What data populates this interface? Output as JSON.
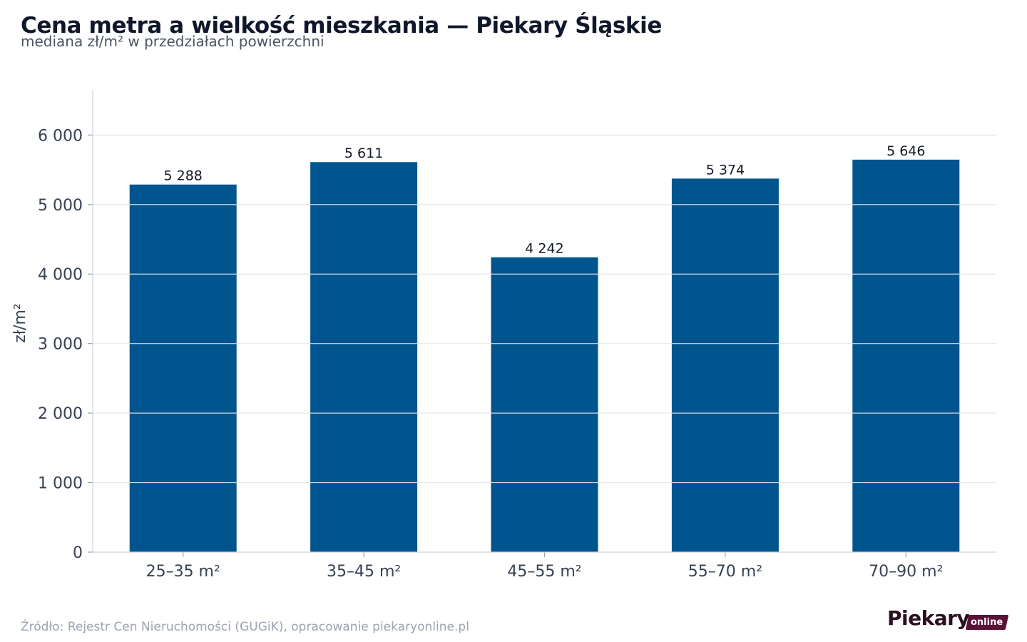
{
  "header": {
    "title": "Cena metra a wielkość mieszkania — Piekary Śląskie",
    "subtitle": "mediana zł/m² w przedziałach powierzchni"
  },
  "footer": {
    "source": "Źródło: Rejestr Cen Nieruchomości (GUGiK), opracowanie piekaryonline.pl"
  },
  "logo": {
    "main": "Piekary",
    "tag": "online",
    "colors": {
      "main": "#2b1020",
      "tag_bg": "#5b1238"
    }
  },
  "chart_data": {
    "type": "bar",
    "title": "Cena metra a wielkość mieszkania — Piekary Śląskie",
    "subtitle": "mediana zł/m² w przedziałach powierzchni",
    "xlabel": "",
    "ylabel": "zł/m²",
    "categories": [
      "25–35 m²",
      "35–45 m²",
      "45–55 m²",
      "55–70 m²",
      "70–90 m²"
    ],
    "values": [
      5288,
      5611,
      4242,
      5374,
      5646
    ],
    "value_labels": [
      "5 288",
      "5 611",
      "4 242",
      "5 374",
      "5 646"
    ],
    "ylim": [
      0,
      6650
    ],
    "yticks": [
      0,
      1000,
      2000,
      3000,
      4000,
      5000,
      6000
    ],
    "ytick_labels": [
      "0",
      "1 000",
      "2 000",
      "3 000",
      "4 000",
      "5 000",
      "6 000"
    ],
    "grid": true,
    "bar_color": "#00558f",
    "grid_color": "#e5e7eb"
  }
}
